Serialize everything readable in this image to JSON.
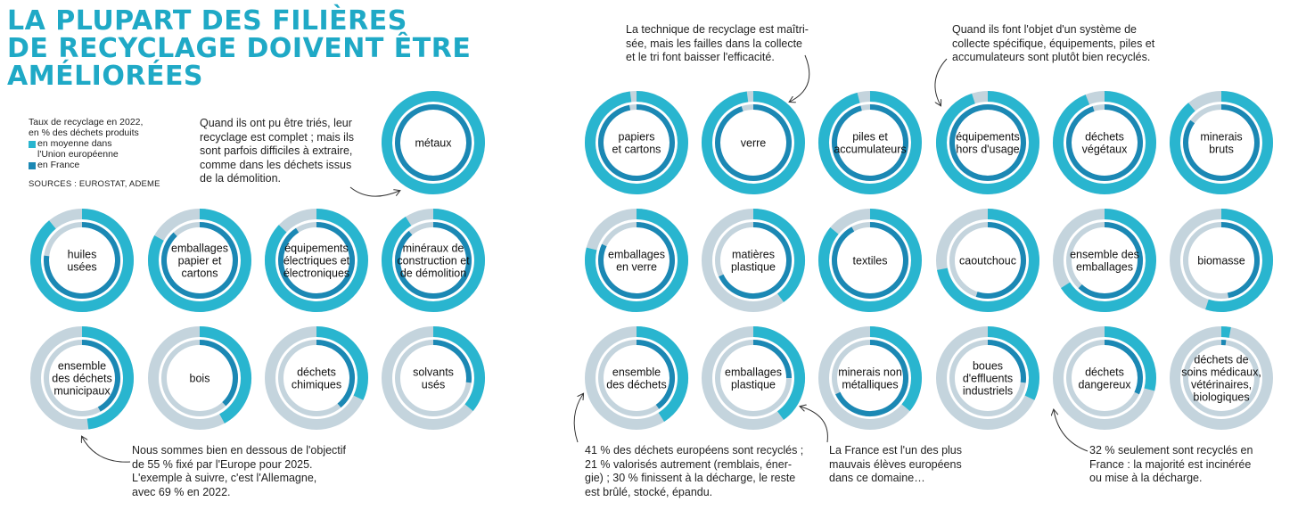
{
  "title": {
    "line1": "LA PLUPART DES FILIÈRES",
    "line2": "DE RECYCLAGE DOIVENT ÊTRE",
    "line3": "AMÉLIORÉES"
  },
  "legend": {
    "title_line1": "Taux de recyclage en 2022,",
    "title_line2": "en % des déchets produits",
    "eu_line1": "en moyenne dans",
    "eu_line2": "l'Union européenne",
    "fr": "en France",
    "sources": "SOURCES : EUROSTAT, ADEME"
  },
  "colors": {
    "eu": "#29b5cf",
    "fr": "#1b88b4",
    "track": "#c4d4dd",
    "title": "#1fa9c6"
  },
  "annotations": [
    {
      "id": "metaux",
      "lines": [
        "Quand ils ont pu être triés, leur",
        "recyclage est complet ; mais ils",
        "sont parfois difficiles à extraire,",
        "comme dans les déchets issus",
        "de la démolition."
      ]
    },
    {
      "id": "verre",
      "lines": [
        "La technique de recyclage est maîtri-",
        "sée, mais les failles dans la collecte",
        "et le tri font baisser l'efficacité."
      ]
    },
    {
      "id": "equipements",
      "lines": [
        "Quand ils font l'objet d'un système de",
        "collecte spécifique, équipements, piles et",
        "accumulateurs sont plutôt bien recyclés."
      ]
    },
    {
      "id": "municipaux",
      "lines": [
        "Nous sommes bien en dessous de l'objectif",
        "de 55 % fixé par l'Europe pour 2025.",
        "L'exemple à suivre, c'est l'Allemagne,",
        "avec 69 % en 2022."
      ]
    },
    {
      "id": "ensemble",
      "lines": [
        "41 % des déchets européens sont recyclés ;",
        "21 % valorisés autrement (remblais, éner-",
        "gie) ; 30 % finissent à la décharge, le reste",
        "est brûlé, stocké, épandu."
      ]
    },
    {
      "id": "plastique",
      "lines": [
        "La France est l'un des plus",
        "mauvais élèves européens",
        "dans ce domaine…"
      ]
    },
    {
      "id": "dangereux",
      "lines": [
        "32 % seulement sont recyclés en",
        "France : la majorité est incinérée",
        "ou mise à la décharge."
      ]
    }
  ],
  "chart_data": {
    "type": "donut",
    "unit": "%",
    "series": [
      {
        "key": "eu"
      },
      {
        "key": "fr"
      }
    ],
    "items": [
      {
        "label": [
          "métaux"
        ],
        "eu": 100,
        "fr": 100
      },
      {
        "label": [
          "huiles",
          "usées"
        ],
        "eu": 89,
        "fr": 77
      },
      {
        "label": [
          "emballages",
          "papier et",
          "cartons"
        ],
        "eu": 83,
        "fr": 88
      },
      {
        "label": [
          "équipements",
          "électriques et",
          "électroniques"
        ],
        "eu": 87,
        "fr": 91
      },
      {
        "label": [
          "minéraux de",
          "construction et",
          "de démolition"
        ],
        "eu": 91,
        "fr": 89
      },
      {
        "label": [
          "ensemble",
          "des déchets",
          "municipaux"
        ],
        "eu": 48,
        "fr": 42
      },
      {
        "label": [
          "bois"
        ],
        "eu": 42,
        "fr": 38
      },
      {
        "label": [
          "déchets",
          "chimiques"
        ],
        "eu": 32,
        "fr": 39
      },
      {
        "label": [
          "solvants",
          "usés"
        ],
        "eu": 36,
        "fr": 27
      },
      {
        "label": [
          "papiers",
          "et cartons"
        ],
        "eu": 98,
        "fr": 97
      },
      {
        "label": [
          "verre"
        ],
        "eu": 98,
        "fr": 95
      },
      {
        "label": [
          "piles et",
          "accumulateurs"
        ],
        "eu": 96,
        "fr": 96
      },
      {
        "label": [
          "équipements",
          "hors d'usage"
        ],
        "eu": 95,
        "fr": 100
      },
      {
        "label": [
          "déchets",
          "végétaux"
        ],
        "eu": 94,
        "fr": 95
      },
      {
        "label": [
          "minerais",
          "bruts"
        ],
        "eu": 89,
        "fr": 85
      },
      {
        "label": [
          "emballages",
          "en verre"
        ],
        "eu": 79,
        "fr": 82
      },
      {
        "label": [
          "matières",
          "plastique"
        ],
        "eu": 40,
        "fr": 68
      },
      {
        "label": [
          "textiles"
        ],
        "eu": 86,
        "fr": 92
      },
      {
        "label": [
          "caoutchouc"
        ],
        "eu": 72,
        "fr": 55
      },
      {
        "label": [
          "ensemble des",
          "emballages"
        ],
        "eu": 66,
        "fr": 62
      },
      {
        "label": [
          "biomasse"
        ],
        "eu": 55,
        "fr": 47
      },
      {
        "label": [
          "ensemble",
          "des déchets"
        ],
        "eu": 41,
        "fr": 40
      },
      {
        "label": [
          "emballages",
          "plastique"
        ],
        "eu": 40,
        "fr": 25
      },
      {
        "label": [
          "minerais non",
          "métalliques"
        ],
        "eu": 36,
        "fr": 68
      },
      {
        "label": [
          "boues",
          "d'effluents",
          "industriels"
        ],
        "eu": 32,
        "fr": 27
      },
      {
        "label": [
          "déchets",
          "dangereux"
        ],
        "eu": 29,
        "fr": 32
      },
      {
        "label": [
          "déchets de",
          "soins médicaux,",
          "vétérinaires,",
          "biologiques"
        ],
        "eu": 3,
        "fr": 2
      }
    ]
  }
}
